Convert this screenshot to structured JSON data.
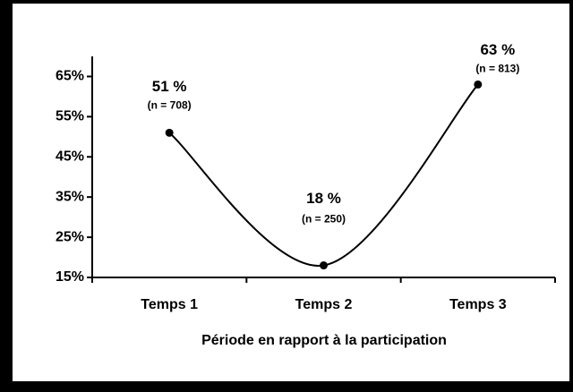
{
  "chart_data": {
    "type": "line",
    "x_label": "Période en rapport à la participation",
    "categories": [
      "Temps 1",
      "Temps 2",
      "Temps 3"
    ],
    "values": [
      51,
      18,
      63
    ],
    "value_labels": [
      "51 %",
      "18 %",
      "63 %"
    ],
    "annotations": [
      "(n = 708)",
      "(n = 250)",
      "(n = 813)"
    ],
    "color": "#000000",
    "smooth": true,
    "ylim": [
      15,
      70
    ],
    "yticks": [
      {
        "value": 15,
        "label": "15%"
      },
      {
        "value": 25,
        "label": "25%"
      },
      {
        "value": 35,
        "label": "35%"
      },
      {
        "value": 45,
        "label": "45%"
      },
      {
        "value": 55,
        "label": "55%"
      },
      {
        "value": 65,
        "label": "65%"
      }
    ],
    "grid": false
  }
}
